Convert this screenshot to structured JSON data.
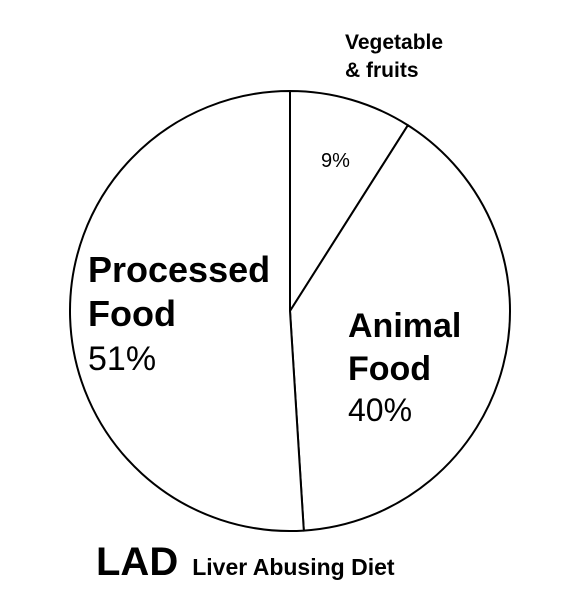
{
  "chart_data": {
    "type": "pie",
    "slices": [
      {
        "label_lines": [
          "Processed",
          "Food"
        ],
        "value_label": "51%",
        "value": 51
      },
      {
        "label_lines": [
          "Animal",
          "Food"
        ],
        "value_label": "40%",
        "value": 40
      },
      {
        "label_lines": [
          "Vegetable",
          "& fruits"
        ],
        "value_label": "9%",
        "value": 9
      }
    ],
    "colors": {
      "fill": "#ffffff",
      "stroke": "#000000"
    }
  },
  "caption": {
    "abbreviation": "LAD",
    "full_text": "Liver Abusing Diet"
  }
}
